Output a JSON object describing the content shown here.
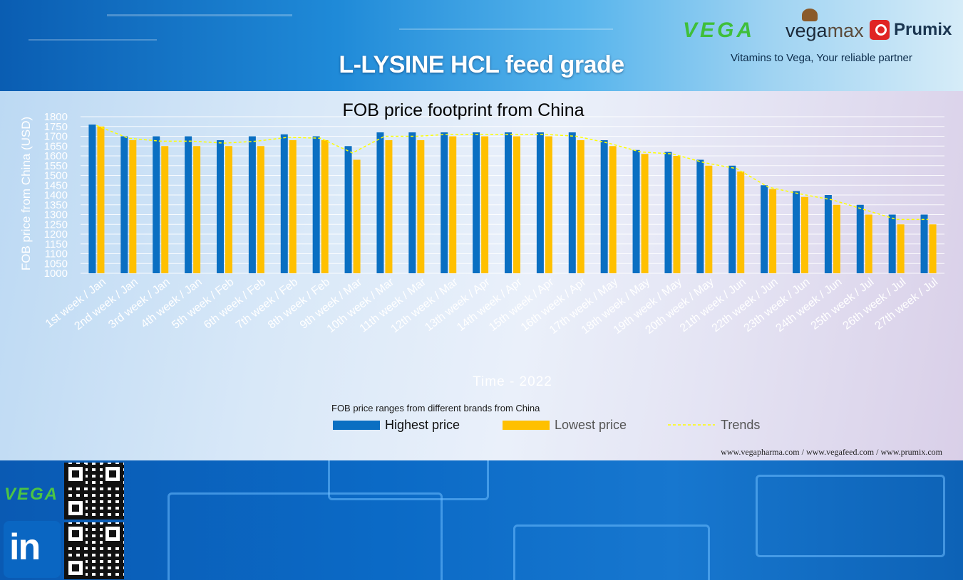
{
  "header": {
    "title": "L-LYSINE HCL feed grade",
    "tagline": "Vitamins to Vega, Your reliable partner",
    "logo_vega": "VEGA",
    "logo_vegamax_prefix": "vega",
    "logo_vegamax_suffix": "max",
    "logo_prumix": "Prumix"
  },
  "footer": {
    "websites": "www.vegapharma.com / www.vegafeed.com / www.prumix.com",
    "logo_vega": "VEGA",
    "linkedin_label": "in"
  },
  "colors": {
    "highest": "#0a6fc2",
    "lowest": "#ffc000",
    "trend": "#ffff00"
  },
  "chart_data": {
    "type": "bar",
    "title": "FOB price footprint from China",
    "xlabel": "Time - 2022",
    "ylabel": "FOB price from China (USD)",
    "ylim": [
      1000,
      1800
    ],
    "yticks": [
      1000,
      1050,
      1100,
      1150,
      1200,
      1250,
      1300,
      1350,
      1400,
      1450,
      1500,
      1550,
      1600,
      1650,
      1700,
      1750,
      1800
    ],
    "grid": true,
    "legend_title": "FOB price ranges from different brands from China",
    "legend_position": "bottom",
    "categories": [
      "1st week / Jan",
      "2nd week / Jan",
      "3rd week / Jan",
      "4th week / Jan",
      "5th week / Feb",
      "6th week / Feb",
      "7th week / Feb",
      "8th week / Feb",
      "9th week / Mar",
      "10th week / Mar",
      "11th week / Mar",
      "12th week / Mar",
      "13th week / Apr",
      "14th week / Apr",
      "15th week / Apr",
      "16th week / Apr",
      "17th week / May",
      "18th week / May",
      "19th week / May",
      "20th week / May",
      "21th week / Jun",
      "22th week / Jun",
      "23th week / Jun",
      "24th week / Jun",
      "25th week / Jul",
      "26th week / Jul",
      "27th week / Jul"
    ],
    "series": [
      {
        "name": "Highest price",
        "values": [
          1760,
          1700,
          1700,
          1700,
          1680,
          1700,
          1710,
          1700,
          1650,
          1720,
          1720,
          1720,
          1720,
          1720,
          1720,
          1720,
          1680,
          1630,
          1620,
          1580,
          1550,
          1450,
          1420,
          1400,
          1350,
          1300,
          1300
        ]
      },
      {
        "name": "Lowest price",
        "values": [
          1750,
          1680,
          1650,
          1650,
          1650,
          1650,
          1680,
          1680,
          1580,
          1680,
          1680,
          1700,
          1700,
          1700,
          1700,
          1680,
          1650,
          1610,
          1600,
          1550,
          1520,
          1430,
          1390,
          1350,
          1300,
          1250,
          1250
        ]
      },
      {
        "name": "Trends",
        "type": "line",
        "style": "dashed",
        "values": [
          1755,
          1690,
          1675,
          1675,
          1665,
          1675,
          1695,
          1690,
          1615,
          1700,
          1700,
          1710,
          1710,
          1710,
          1710,
          1700,
          1665,
          1620,
          1610,
          1565,
          1535,
          1440,
          1405,
          1375,
          1325,
          1275,
          1275
        ]
      }
    ]
  }
}
